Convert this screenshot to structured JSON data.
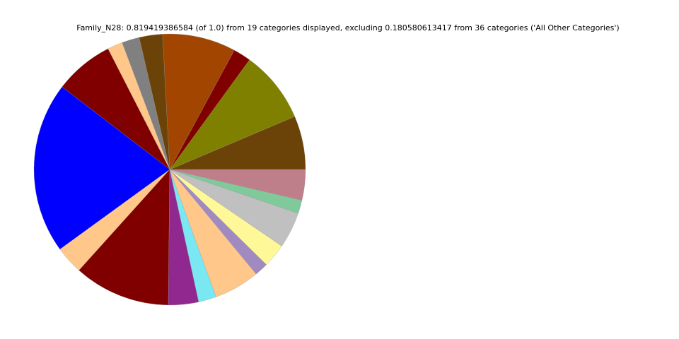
{
  "chart_data": {
    "type": "pie",
    "title": "Family_N28: 0.819419386584 (of 1.0) from 19 categories displayed, excluding 0.180580613417 from 36 categories ('All Other Categories')",
    "values": [
      0.0524,
      0.0706,
      0.0173,
      0.0715,
      0.0228,
      0.0171,
      0.0148,
      0.0578,
      0.1675,
      0.0273,
      0.0942,
      0.0294,
      0.0173,
      0.0446,
      0.0134,
      0.0232,
      0.0353,
      0.013,
      0.03
    ],
    "colors": [
      "#6b4308",
      "#808000",
      "#800000",
      "#a14500",
      "#6b4308",
      "#808080",
      "#ffc78a",
      "#800000",
      "#0000ff",
      "#ffc78a",
      "#800000",
      "#912890",
      "#7ae8f2",
      "#ffc78a",
      "#a08ac0",
      "#fff899",
      "#c0c0c0",
      "#80c99a",
      "#bf7f8a"
    ],
    "start_angle": 0,
    "direction": "counterclockwise"
  }
}
